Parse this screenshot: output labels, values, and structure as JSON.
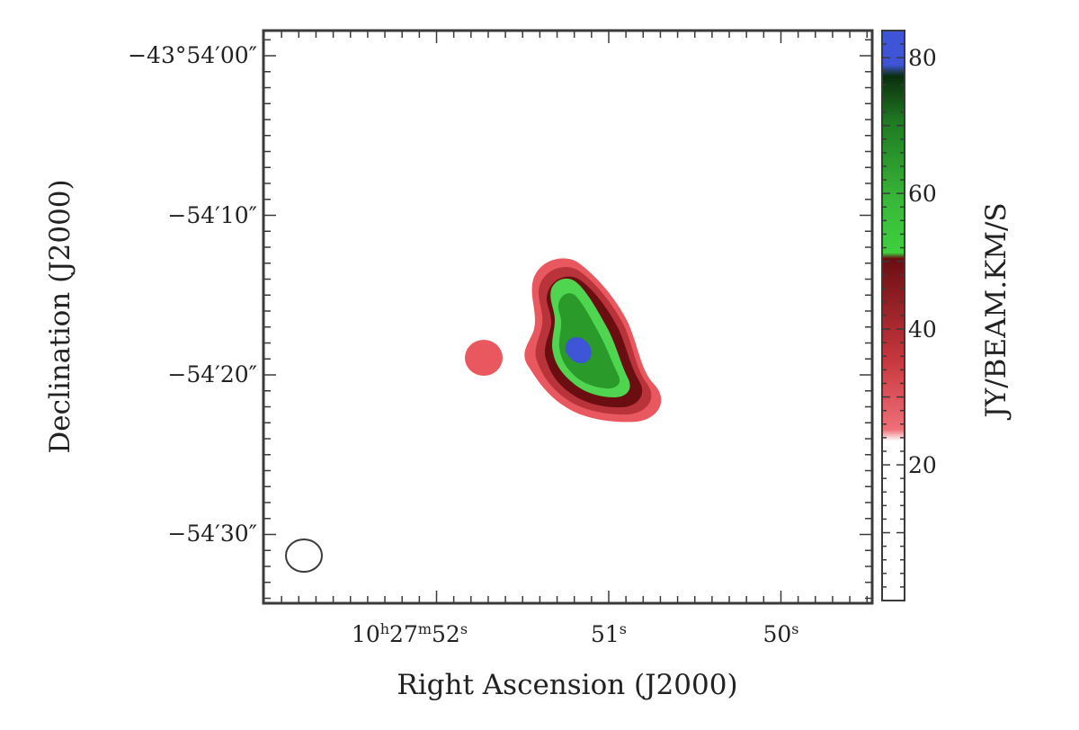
{
  "chart_data": {
    "type": "heatmap",
    "title": "",
    "xlabel": "Right Ascension (J2000)",
    "ylabel": "Declination (J2000)",
    "x_ticks": [
      {
        "label": "10h27m52s",
        "main": "10",
        "parts": [
          {
            "t": "h",
            "sup": true
          },
          {
            "t": "27",
            "sup": false
          },
          {
            "t": "m",
            "sup": true
          },
          {
            "t": "52",
            "sup": false
          },
          {
            "t": "s",
            "sup": true
          }
        ]
      },
      {
        "label": "51s",
        "main": "51",
        "parts": [
          {
            "t": "s",
            "sup": true
          }
        ]
      },
      {
        "label": "50s",
        "main": "50",
        "parts": [
          {
            "t": "s",
            "sup": true
          }
        ]
      }
    ],
    "y_ticks": [
      "−43°54′00″",
      "−54′10″",
      "−54′20″",
      "−54′30″"
    ],
    "colorbar": {
      "label": "JY/BEAM.KM/S",
      "range": [
        0,
        84
      ],
      "ticks": [
        20,
        40,
        60,
        80
      ],
      "colors": {
        "white": "#ffffff",
        "light_red": "#e8585e",
        "red": "#c8383e",
        "dark_red": "#7a1418",
        "light_green": "#58d558",
        "green": "#2a9a2a",
        "dark_green": "#0c3a10",
        "blue": "#3d55d6"
      }
    },
    "emission_levels": [
      {
        "level": 25,
        "color": "#e8585e"
      },
      {
        "level": 37,
        "color": "#b8343a"
      },
      {
        "level": 47,
        "color": "#6a0e12"
      },
      {
        "level": 55,
        "color": "#4fd54f"
      },
      {
        "level": 64,
        "color": "#2a9a2a"
      },
      {
        "level": 80,
        "color": "#3d55d6"
      }
    ],
    "beam": "ellipse",
    "grid": false
  }
}
